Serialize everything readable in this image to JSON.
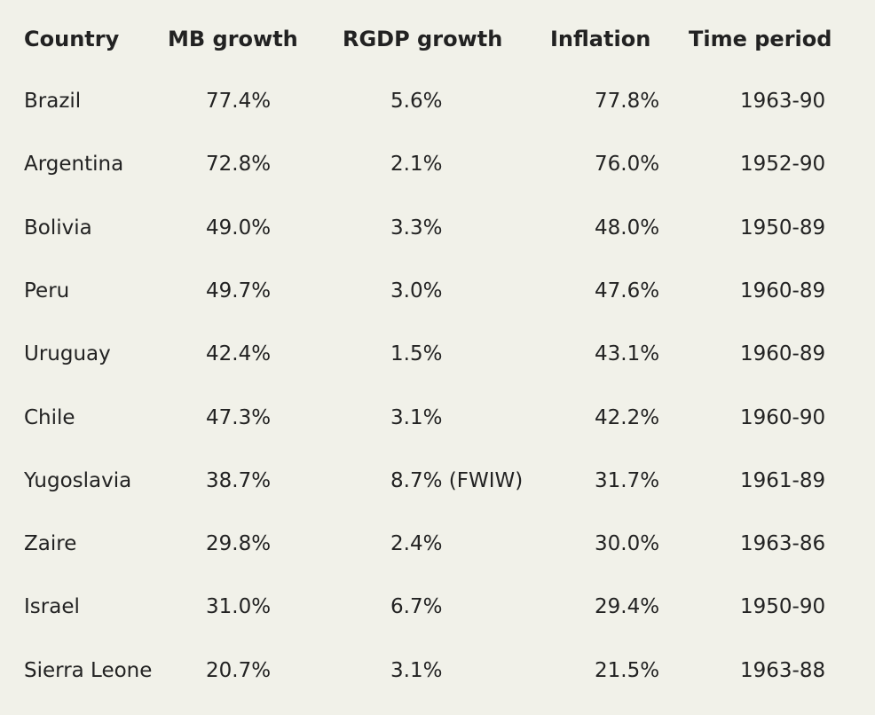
{
  "table": {
    "header": [
      "Country",
      "MB growth",
      "RGDP growth",
      "Inflation",
      "Time period"
    ],
    "rows": [
      [
        "Brazil",
        "77.4%",
        "5.6%",
        "77.8%",
        "1963-90"
      ],
      [
        "Argentina",
        "72.8%",
        "2.1%",
        "76.0%",
        "1952-90"
      ],
      [
        "Bolivia",
        "49.0%",
        "3.3%",
        "48.0%",
        "1950-89"
      ],
      [
        "Peru",
        "49.7%",
        "3.0%",
        "47.6%",
        "1960-89"
      ],
      [
        "Uruguay",
        "42.4%",
        "1.5%",
        "43.1%",
        "1960-89"
      ],
      [
        "Chile",
        "47.3%",
        "3.1%",
        "42.2%",
        "1960-90"
      ],
      [
        "Yugoslavia",
        "38.7%",
        "8.7% (FWIW)",
        "31.7%",
        "1961-89"
      ],
      [
        "Zaire",
        "29.8%",
        "2.4%",
        "30.0%",
        "1963-86"
      ],
      [
        "Israel",
        "31.0%",
        "6.7%",
        "29.4%",
        "1950-90"
      ],
      [
        "Sierra Leone",
        "20.7%",
        "3.1%",
        "21.5%",
        "1963-88"
      ]
    ]
  }
}
